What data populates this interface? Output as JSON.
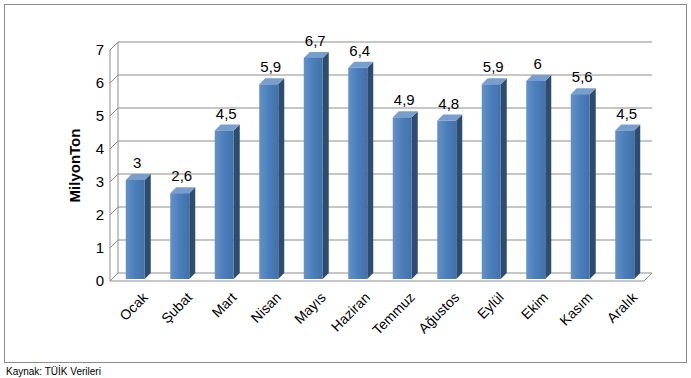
{
  "chart_data": {
    "type": "bar",
    "y_label": "MilyonTon",
    "categories": [
      "Ocak",
      "Şubat",
      "Mart",
      "Nisan",
      "Mayıs",
      "Haziran",
      "Temmuz",
      "Ağustos",
      "Eylül",
      "Ekim",
      "Kasım",
      "Aralık"
    ],
    "values": [
      3,
      2.6,
      4.5,
      5.9,
      6.7,
      6.4,
      4.9,
      4.8,
      5.9,
      6,
      5.6,
      4.5
    ],
    "value_labels": [
      "3",
      "2,6",
      "4,5",
      "5,9",
      "6,7",
      "6,4",
      "4,9",
      "4,8",
      "5,9",
      "6",
      "5,6",
      "4,5"
    ],
    "color": "#4a7ebb",
    "ylim": [
      0,
      7
    ],
    "yticks": [
      0,
      1,
      2,
      3,
      4,
      5,
      6,
      7
    ],
    "grid": true,
    "data_labels": true,
    "annotations": [
      "Kaynak: TÜİK Verileri"
    ]
  }
}
